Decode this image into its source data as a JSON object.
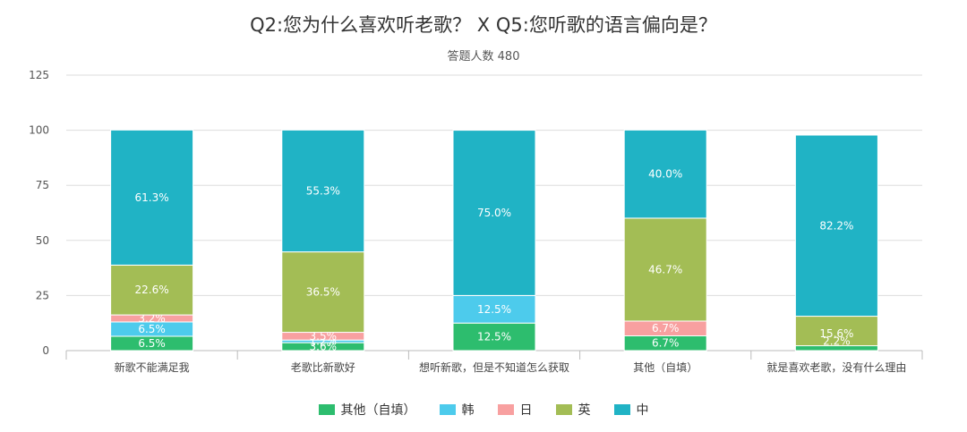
{
  "chart_data": {
    "type": "bar",
    "stacked": true,
    "title": "Q2:您为什么喜欢听老歌？ X Q5:您听歌的语言偏向是？",
    "subtitle": "答题人数 480",
    "categories": [
      "新歌不能满足我",
      "老歌比新歌好",
      "想听新歌，但是不知道怎么获取",
      "其他（自填）",
      "就是喜欢老歌，没有什么理由"
    ],
    "ylim": [
      0,
      125
    ],
    "yticks": [
      0,
      25,
      50,
      75,
      100,
      125
    ],
    "grid": true,
    "legend_position": "bottom",
    "series": [
      {
        "name": "其他（自填）",
        "color": "#2dbd6e",
        "values": [
          6.5,
          3.6,
          12.5,
          6.7,
          0.0
        ],
        "labels": [
          "6.5%",
          "3.6%",
          "12.5%",
          "6.7%",
          ""
        ]
      },
      {
        "name": "韩",
        "color": "#4dcbec",
        "values": [
          6.5,
          1.2,
          12.5,
          0.0,
          0.0
        ],
        "labels": [
          "6.5%",
          "1.2%",
          "12.5%",
          "",
          ""
        ]
      },
      {
        "name": "日",
        "color": "#f8a0a0",
        "values": [
          3.2,
          3.5,
          0.0,
          6.7,
          0.0
        ],
        "labels": [
          "3.2%",
          "3.5%",
          "",
          "6.7%",
          ""
        ]
      },
      {
        "name": "英",
        "color": "#a3bd55",
        "values": [
          22.6,
          36.5,
          0.0,
          46.7,
          15.6
        ],
        "labels": [
          "22.6%",
          "36.5%",
          "",
          "46.7%",
          "15.6%"
        ]
      },
      {
        "name": "中",
        "color": "#20b3c5",
        "values": [
          61.3,
          55.3,
          75.0,
          40.0,
          82.2
        ],
        "labels": [
          "61.3%",
          "55.3%",
          "75.0%",
          "40.0%",
          "82.2%"
        ]
      }
    ],
    "extra_labels": [
      {
        "category_index": 4,
        "text": "2.2%",
        "y_value": 2.2
      }
    ]
  }
}
